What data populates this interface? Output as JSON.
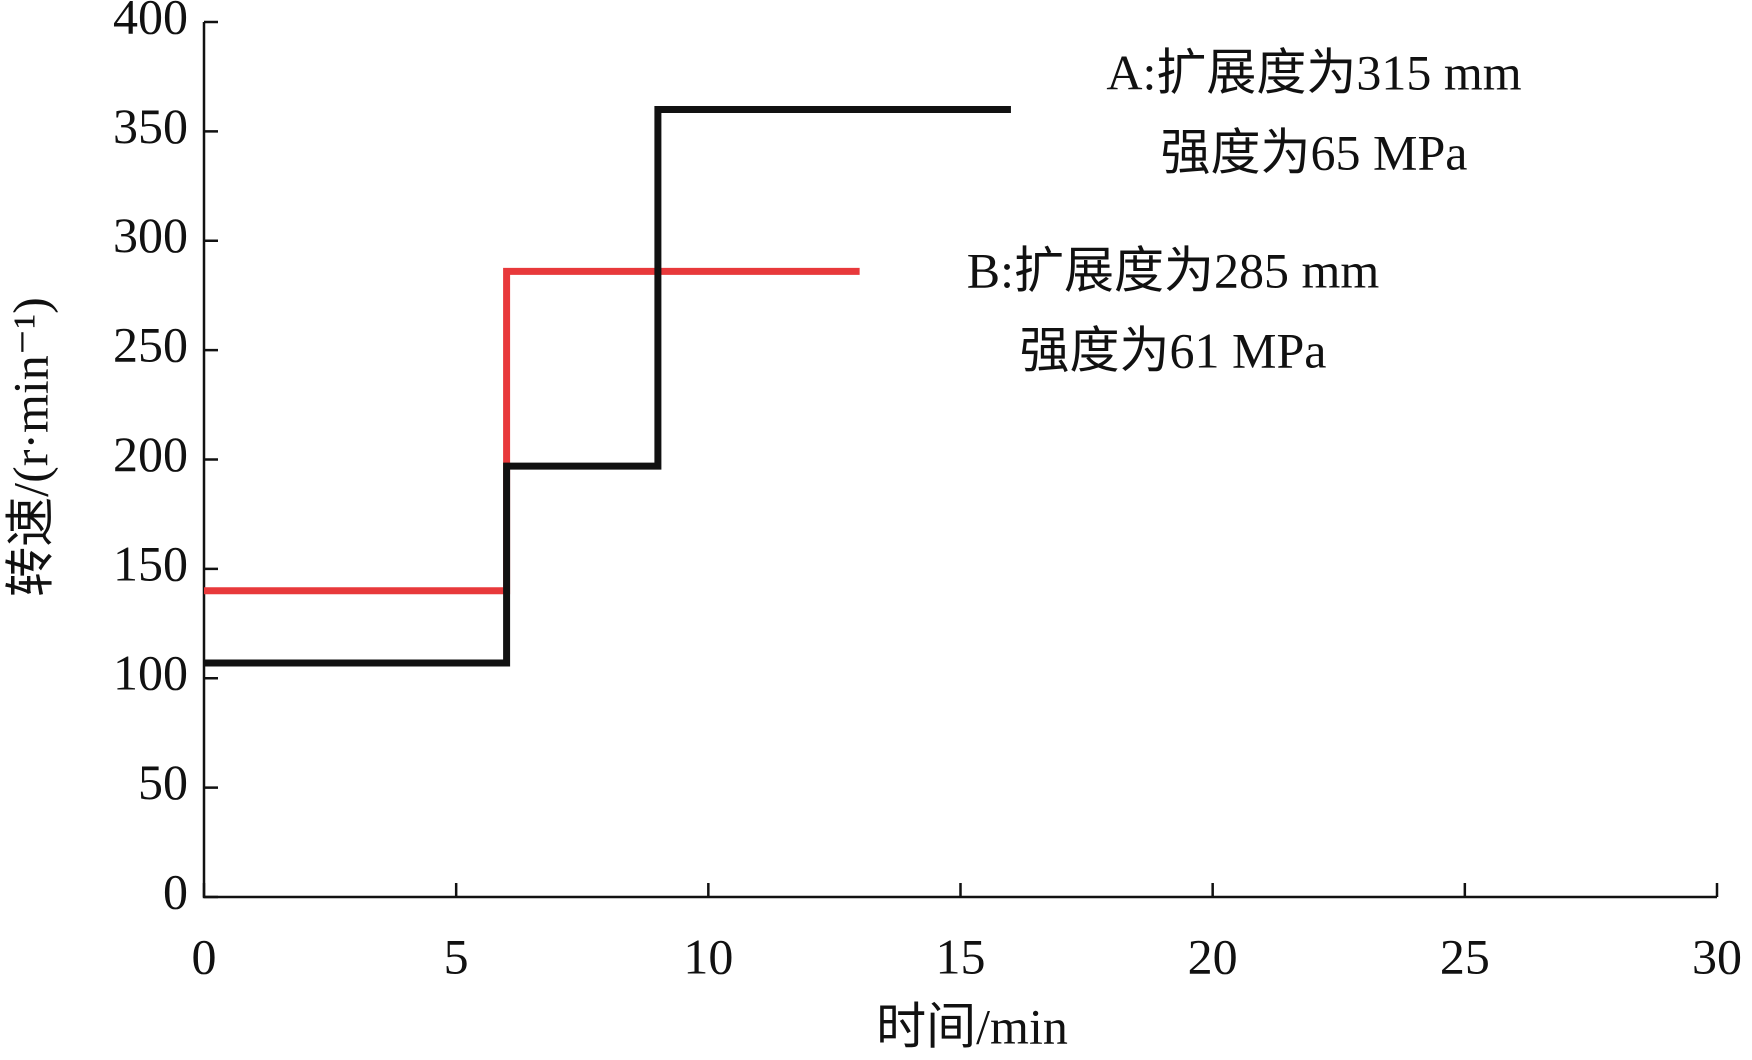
{
  "chart_data": {
    "type": "line",
    "xlabel": "时间/min",
    "ylabel": "转速/(r·min⁻¹)",
    "xlim": [
      0,
      30
    ],
    "xticks": [
      0,
      5,
      10,
      15,
      20,
      25,
      30
    ],
    "ylim": [
      0,
      400
    ],
    "yticks": [
      0,
      50,
      100,
      150,
      200,
      250,
      300,
      350,
      400
    ],
    "series": [
      {
        "name": "A",
        "color": "#111111",
        "x": [
          0,
          6,
          6,
          9,
          9,
          16
        ],
        "values": [
          107,
          107,
          197,
          197,
          360,
          360
        ]
      },
      {
        "name": "B",
        "color": "#e8393b",
        "x": [
          0,
          6,
          6,
          13
        ],
        "values": [
          140,
          140,
          286,
          286
        ]
      }
    ],
    "annotations": [
      "A:扩展度为315 mm",
      "强度为65 MPa",
      "B:扩展度为285 mm",
      "强度为61 MPa"
    ]
  }
}
